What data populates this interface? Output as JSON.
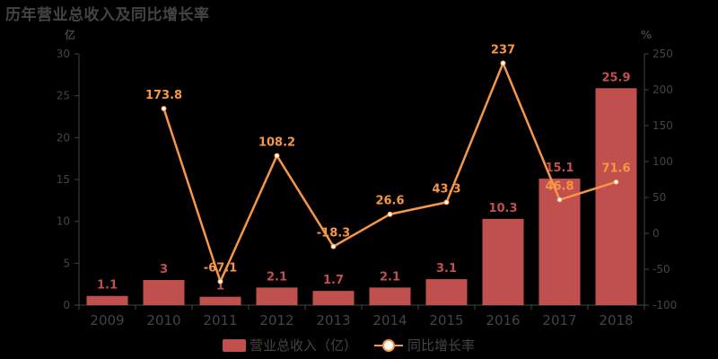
{
  "title": "历年营业总收入及同比增长率",
  "axes": {
    "left_unit": "亿",
    "right_unit": "%",
    "left_ticks": [
      "0",
      "5",
      "10",
      "15",
      "20",
      "25",
      "30"
    ],
    "right_ticks": [
      "-100",
      "-50",
      "0",
      "50",
      "100",
      "150",
      "200",
      "250"
    ]
  },
  "legend": {
    "bar_label": "营业总收入（亿）",
    "line_label": "同比增长率"
  },
  "colors": {
    "bar": "#c0504d",
    "line": "#f79646",
    "axis": "#444444",
    "background": "#000000"
  },
  "chart_data": {
    "type": "bar",
    "title": "历年营业总收入及同比增长率",
    "categories": [
      "2009",
      "2010",
      "2011",
      "2012",
      "2013",
      "2014",
      "2015",
      "2016",
      "2017",
      "2018"
    ],
    "series": [
      {
        "name": "营业总收入（亿）",
        "type": "bar",
        "axis": "left",
        "values": [
          1.1,
          3,
          1,
          2.1,
          1.7,
          2.1,
          3.1,
          10.3,
          15.1,
          25.9
        ]
      },
      {
        "name": "同比增长率",
        "type": "line",
        "axis": "right",
        "values": [
          null,
          173.8,
          -67.1,
          108.2,
          -18.3,
          26.6,
          43.3,
          237,
          46.8,
          71.6
        ]
      }
    ],
    "xlabel": "",
    "ylabel": "亿",
    "y2label": "%",
    "ylim": [
      0,
      30
    ],
    "y2lim": [
      -100,
      250
    ],
    "grid": false,
    "legend_position": "bottom"
  }
}
